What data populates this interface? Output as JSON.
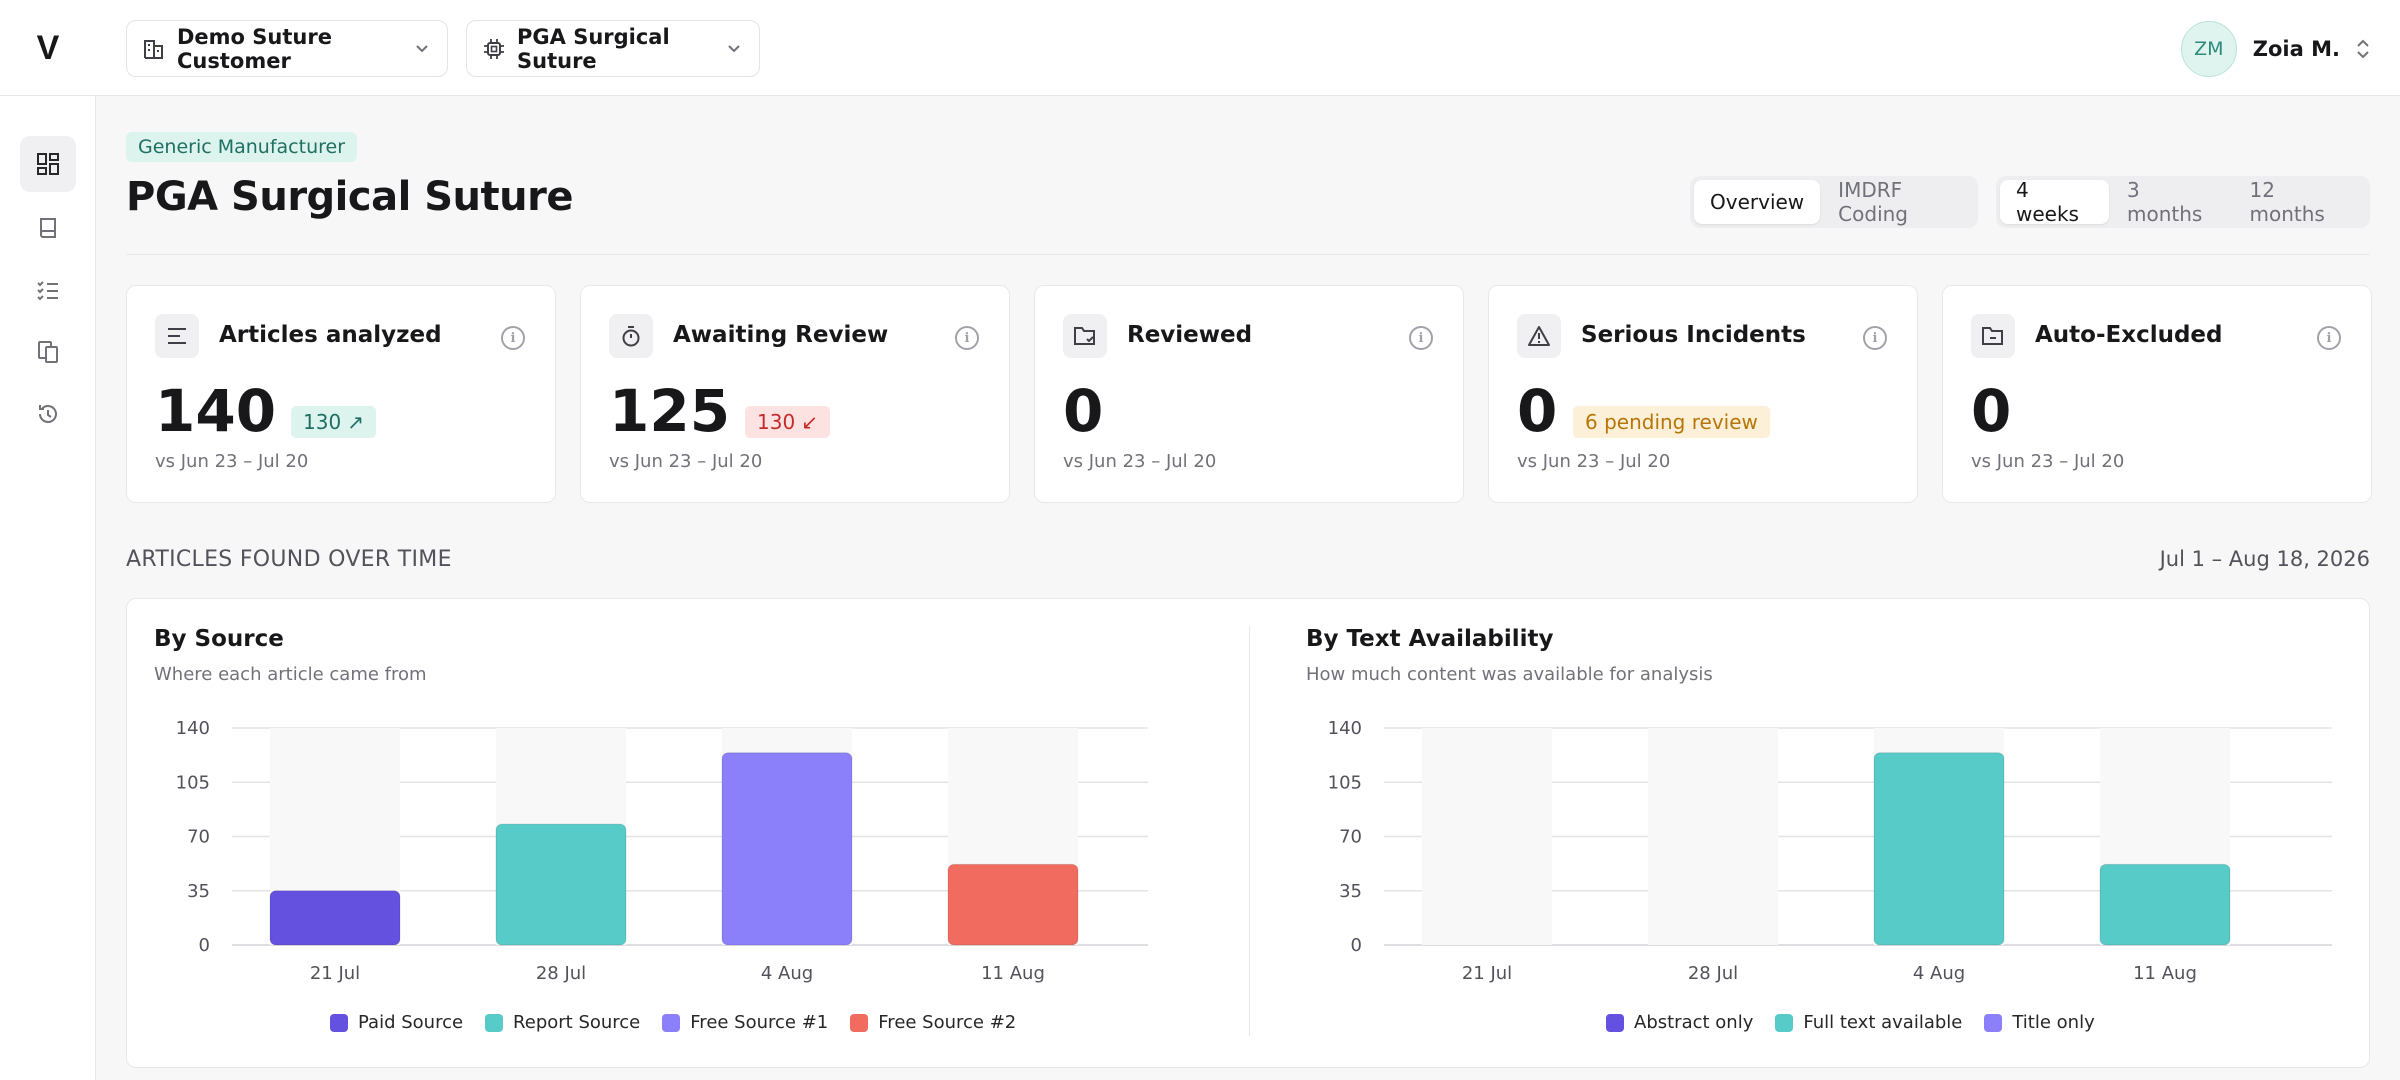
{
  "header": {
    "logo": "V",
    "customer_selector": "Demo Suture Customer",
    "product_selector": "PGA Surgical Suture",
    "user_initials": "ZM",
    "user_name": "Zoia M."
  },
  "sidebar": {
    "items": [
      {
        "icon": "dashboard-icon",
        "active": true
      },
      {
        "icon": "book-icon",
        "active": false
      },
      {
        "icon": "checklist-icon",
        "active": false
      },
      {
        "icon": "documents-icon",
        "active": false
      },
      {
        "icon": "history-icon",
        "active": false
      }
    ]
  },
  "page": {
    "badge": "Generic Manufacturer",
    "title": "PGA Surgical Suture",
    "view_tabs": [
      "Overview",
      "IMDRF Coding"
    ],
    "active_view": "Overview",
    "range_tabs": [
      "4 weeks",
      "3 months",
      "12 months"
    ],
    "active_range": "4 weeks"
  },
  "stats": [
    {
      "title": "Articles analyzed",
      "icon": "list-icon",
      "value": "140",
      "pill": "130",
      "pill_style": "green",
      "pill_arrow": "↗",
      "subtitle": "vs Jun 23 – Jul 20"
    },
    {
      "title": "Awaiting Review",
      "icon": "timer-icon",
      "value": "125",
      "pill": "130",
      "pill_style": "red",
      "pill_arrow": "↙",
      "subtitle": "vs Jun 23 – Jul 20"
    },
    {
      "title": "Reviewed",
      "icon": "folder-check-icon",
      "value": "0",
      "pill": "",
      "pill_style": "",
      "pill_arrow": "",
      "subtitle": "vs Jun 23 – Jul 20"
    },
    {
      "title": "Serious Incidents",
      "icon": "warning-icon",
      "value": "0",
      "pill": "6 pending review",
      "pill_style": "amber",
      "pill_arrow": "",
      "subtitle": "vs Jun 23 – Jul 20"
    },
    {
      "title": "Auto-Excluded",
      "icon": "folder-minus-icon",
      "value": "0",
      "pill": "",
      "pill_style": "",
      "pill_arrow": "",
      "subtitle": "vs Jun 23 – Jul 20"
    }
  ],
  "section": {
    "title": "ARTICLES FOUND OVER TIME",
    "range": "Jul 1 – Aug 18, 2026"
  },
  "colors": {
    "paid": "#6451e0",
    "report": "#57cbc8",
    "free1": "#8b80f9",
    "free2": "#f26b5f",
    "abstract": "#6451e0",
    "fulltext": "#57cbc8",
    "title_only": "#8b80f9"
  },
  "chart_data": [
    {
      "type": "bar",
      "title": "By Source",
      "subtitle": "Where each article came from",
      "categories": [
        "21 Jul",
        "28 Jul",
        "4 Aug",
        "11 Aug"
      ],
      "yticks": [
        0,
        35,
        70,
        105,
        140
      ],
      "ylim": [
        0,
        140
      ],
      "series": [
        {
          "name": "Paid Source",
          "values": [
            35,
            0,
            0,
            0
          ]
        },
        {
          "name": "Report Source",
          "values": [
            0,
            78,
            0,
            0
          ]
        },
        {
          "name": "Free Source #1",
          "values": [
            0,
            0,
            124,
            0
          ]
        },
        {
          "name": "Free Source #2",
          "values": [
            0,
            0,
            0,
            52
          ]
        }
      ],
      "legend_position": "bottom"
    },
    {
      "type": "bar",
      "title": "By Text Availability",
      "subtitle": "How much content was available for analysis",
      "categories": [
        "21 Jul",
        "28 Jul",
        "4 Aug",
        "11 Aug"
      ],
      "yticks": [
        0,
        35,
        70,
        105,
        140
      ],
      "ylim": [
        0,
        140
      ],
      "series": [
        {
          "name": "Abstract only",
          "values": [
            0,
            0,
            0,
            0
          ]
        },
        {
          "name": "Full text available",
          "values": [
            0,
            0,
            124,
            52
          ]
        },
        {
          "name": "Title only",
          "values": [
            0,
            0,
            0,
            0
          ]
        }
      ],
      "legend_position": "bottom"
    }
  ]
}
